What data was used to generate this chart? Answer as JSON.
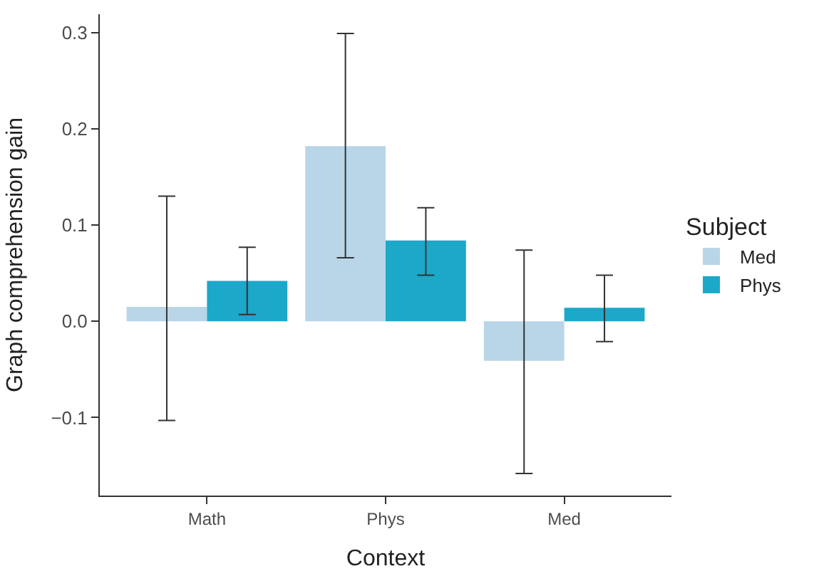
{
  "chart_data": {
    "type": "bar",
    "xlabel": "Context",
    "ylabel": "Graph comprehension gain",
    "legend_title": "Subject",
    "categories": [
      "Math",
      "Phys",
      "Med"
    ],
    "series": [
      {
        "name": "Med",
        "color": "#b9d5e8",
        "values": [
          0.015,
          0.182,
          -0.041
        ],
        "errors": [
          [
            -0.103,
            0.13
          ],
          [
            0.066,
            0.299
          ],
          [
            -0.158,
            0.074
          ]
        ]
      },
      {
        "name": "Phys",
        "color": "#1ba8c9",
        "values": [
          0.042,
          0.084,
          0.014
        ],
        "errors": [
          [
            0.007,
            0.077
          ],
          [
            0.048,
            0.118
          ],
          [
            -0.021,
            0.048
          ]
        ]
      }
    ],
    "ylim": [
      -0.181,
      0.319
    ],
    "yticks": [
      {
        "value": -0.1,
        "label": "−0.1"
      },
      {
        "value": 0.0,
        "label": "0.0"
      },
      {
        "value": 0.1,
        "label": "0.1"
      },
      {
        "value": 0.2,
        "label": "0.2"
      },
      {
        "value": 0.3,
        "label": "0.3"
      }
    ],
    "legend": "right"
  }
}
